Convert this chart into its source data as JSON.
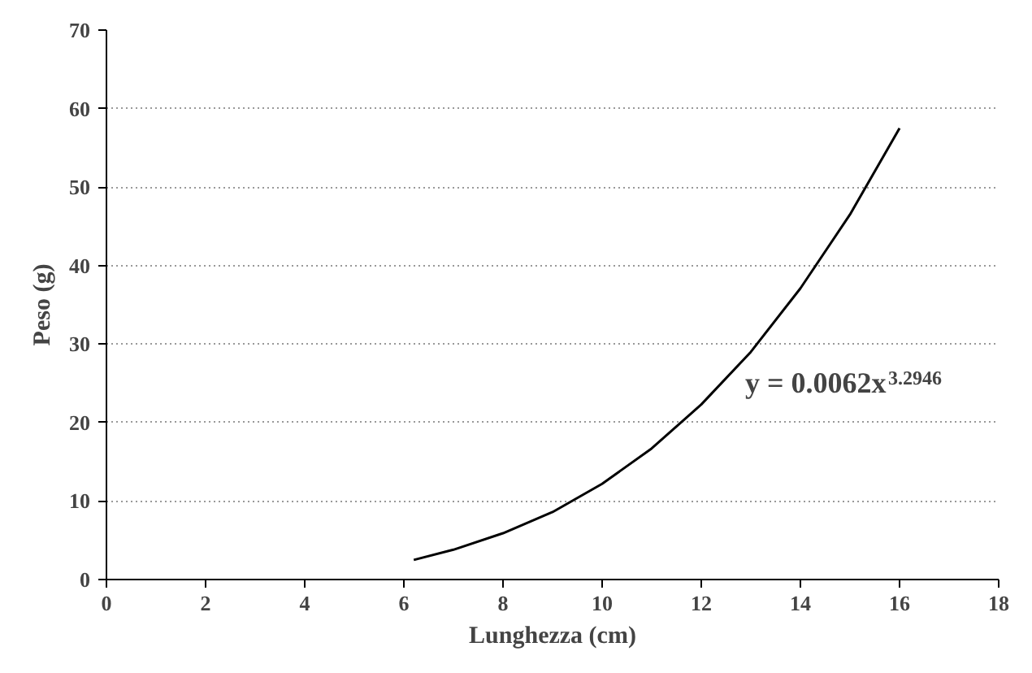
{
  "chart_data": {
    "type": "line",
    "xlabel": "Lunghezza (cm)",
    "ylabel": "Peso (g)",
    "x": [
      6.2,
      7,
      8,
      9,
      10,
      11,
      12,
      13,
      14,
      15,
      16
    ],
    "values": [
      2.5,
      3.8,
      5.9,
      8.6,
      12.2,
      16.7,
      22.3,
      29.0,
      37.1,
      46.5,
      57.5
    ],
    "color": "#000000",
    "line_style": "solid",
    "marker": "none",
    "xlim": [
      0,
      18
    ],
    "xticks": [
      0,
      2,
      4,
      6,
      8,
      10,
      12,
      14,
      16,
      18
    ],
    "ylim": [
      0,
      70
    ],
    "yticks": [
      0,
      10,
      20,
      30,
      40,
      50,
      60,
      70
    ],
    "grid": "y",
    "annotations": [
      "y = 0.0062x$^{3.2946}$"
    ]
  }
}
